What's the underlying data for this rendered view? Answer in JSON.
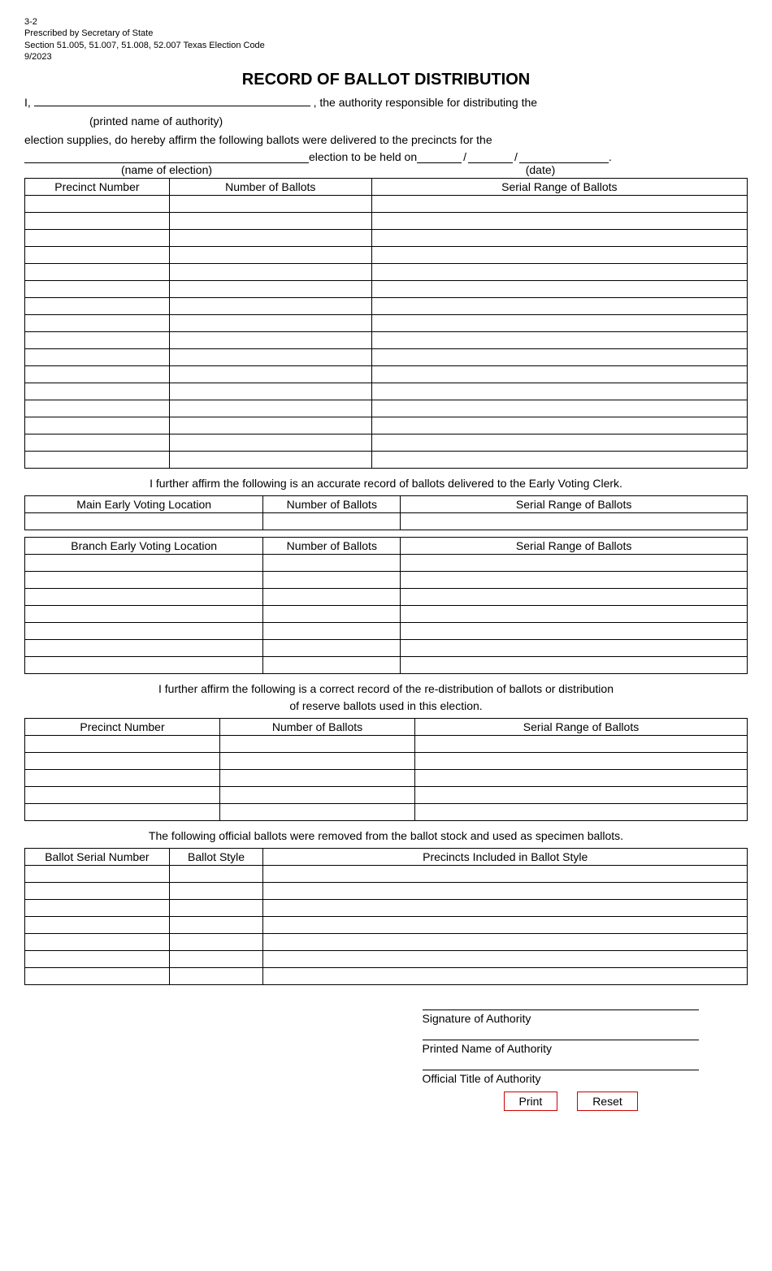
{
  "header": {
    "form_number": "3-2",
    "prescribed": "Prescribed by Secretary of State",
    "section": "Section 51.005, 51.007, 51.008, 52.007 Texas Election Code",
    "revision": "9/2023"
  },
  "title": "RECORD OF BALLOT DISTRIBUTION",
  "intro": {
    "line1_prefix": "I, ",
    "line1_suffix": ", the authority responsible for distributing the",
    "authority_caption": "(printed name of authority)",
    "line2": "election supplies, do hereby affirm the following ballots were delivered to the precincts for the",
    "line3_prefix": " election to be held on ",
    "line3_suffix": ".",
    "election_caption": "(name of election)",
    "date_caption": "(date)"
  },
  "precinct_table": {
    "headers": [
      "Precinct Number",
      "Number of Ballots",
      "Serial Range of Ballots"
    ],
    "col_widths": [
      "20%",
      "28%",
      "52%"
    ],
    "rows": 16
  },
  "early_voting_text": "I further affirm the following is an accurate record of ballots delivered to the Early Voting Clerk.",
  "main_early_table": {
    "headers": [
      "Main Early Voting Location",
      "Number of Ballots",
      "Serial Range of Ballots"
    ],
    "col_widths": [
      "33%",
      "19%",
      "48%"
    ],
    "rows": 1
  },
  "branch_early_table": {
    "headers": [
      "Branch Early Voting Location",
      "Number of Ballots",
      "Serial Range of Ballots"
    ],
    "col_widths": [
      "33%",
      "19%",
      "48%"
    ],
    "rows": 7
  },
  "redistribution_text_line1": "I further affirm the following is a correct record of the re-distribution of ballots or distribution",
  "redistribution_text_line2": "of reserve ballots used in this election.",
  "redistribution_table": {
    "headers": [
      "Precinct Number",
      "Number of Ballots",
      "Serial Range of Ballots"
    ],
    "col_widths": [
      "27%",
      "27%",
      "46%"
    ],
    "rows": 5
  },
  "specimen_text": "The following official ballots were removed from the ballot stock and used as specimen ballots.",
  "specimen_table": {
    "headers": [
      "Ballot Serial Number",
      "Ballot Style",
      "Precincts Included in Ballot Style"
    ],
    "col_widths": [
      "20%",
      "13%",
      "67%"
    ],
    "rows": 7
  },
  "signatures": {
    "sig": "Signature of Authority",
    "printed": "Printed Name of Authority",
    "title": "Official Title of Authority"
  },
  "buttons": {
    "print": "Print",
    "reset": "Reset"
  }
}
